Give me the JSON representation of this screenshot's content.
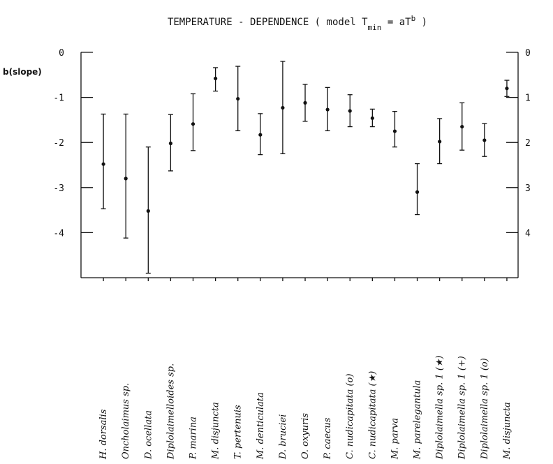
{
  "chart_data": {
    "type": "errorbar",
    "title": {
      "prefix": "TEMPERATURE - DEPENDENCE ( model T",
      "subscript": "min",
      "middle": " = aT",
      "superscript": "b",
      "suffix": " )"
    },
    "ylabel": "b(slope)",
    "ylim": [
      -5.0,
      0
    ],
    "y_ticks": [
      0,
      -1,
      -2,
      -3,
      -4
    ],
    "y_tick_labels": [
      "0",
      "-1",
      "-2",
      "-3",
      "-4"
    ],
    "right_y_tick_labels": [
      "0",
      "1",
      "2",
      "3",
      "4"
    ],
    "grid": false,
    "categories": [
      "H. dorsalis",
      "Oncholaimus sp.",
      "D. ocellata",
      "Diplolaimelloides sp.",
      "P. marina",
      "M. disjuncta",
      "T. pertenuis",
      "M. denticulata",
      "D. bruciei",
      "O. oxyuris",
      "P. caecus",
      "C. nudicapitata (o)",
      "C. nudicapitata (★)",
      "M. parva",
      "M. parelegantula",
      "Diplolaimella sp. 1 (★)",
      "Diplolaimella sp. 1 (+)",
      "Diplolaimella sp. 1 (o)",
      "M. disjuncta"
    ],
    "values": [
      -2.48,
      -2.8,
      -3.52,
      -2.02,
      -1.59,
      -0.58,
      -1.03,
      -1.83,
      -1.23,
      -1.12,
      -1.27,
      -1.3,
      -1.46,
      -1.75,
      -3.1,
      -1.98,
      -1.65,
      -1.95,
      -0.8
    ],
    "lower": [
      -3.47,
      -4.12,
      -4.9,
      -2.63,
      -2.18,
      -0.86,
      -1.74,
      -2.27,
      -2.25,
      -1.53,
      -1.74,
      -1.65,
      -1.65,
      -2.1,
      -3.6,
      -2.47,
      -2.17,
      -2.31,
      -0.98
    ],
    "upper": [
      -1.37,
      -1.37,
      -2.1,
      -1.38,
      -0.92,
      -0.34,
      -0.31,
      -1.36,
      -0.2,
      -0.71,
      -0.78,
      -0.94,
      -1.26,
      -1.31,
      -2.47,
      -1.47,
      -1.12,
      -1.58,
      -0.62
    ]
  }
}
